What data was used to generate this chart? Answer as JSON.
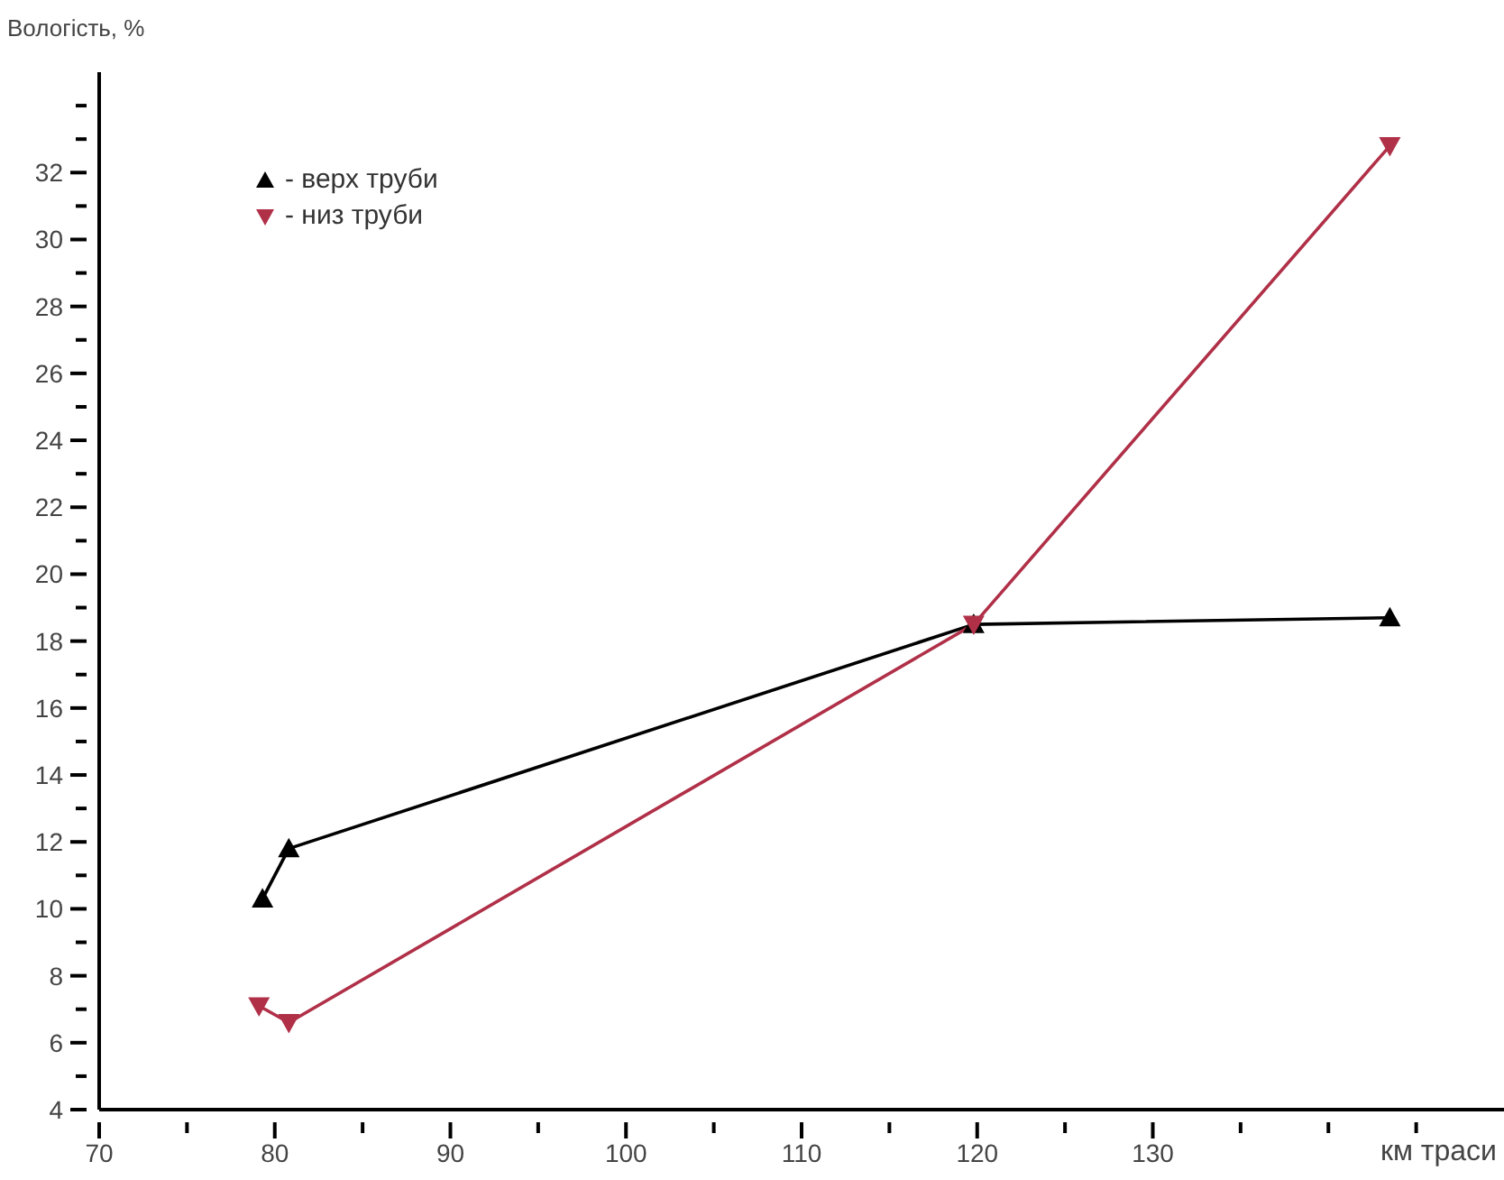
{
  "chart_data": {
    "type": "line",
    "xlabel": "км траси",
    "ylabel": "Вологість, %",
    "xlim": [
      70,
      150
    ],
    "ylim": [
      4,
      35
    ],
    "xticks": [
      70,
      {
        "value": 75,
        "label": null
      },
      80,
      {
        "value": 85,
        "label": null
      },
      90,
      {
        "value": 95,
        "label": null
      },
      100,
      {
        "value": 105,
        "label": null
      },
      110,
      {
        "value": 115,
        "label": null
      },
      120,
      {
        "value": 125,
        "label": null
      },
      130,
      {
        "value": 135,
        "label": null
      },
      {
        "value": 140,
        "label": null
      },
      {
        "value": 145,
        "label": null
      }
    ],
    "yticks": [
      4,
      {
        "value": 5,
        "label": null
      },
      6,
      {
        "value": 7,
        "label": null
      },
      8,
      {
        "value": 9,
        "label": null
      },
      10,
      {
        "value": 11,
        "label": null
      },
      12,
      {
        "value": 13,
        "label": null
      },
      14,
      {
        "value": 15,
        "label": null
      },
      16,
      {
        "value": 17,
        "label": null
      },
      18,
      {
        "value": 19,
        "label": null
      },
      20,
      {
        "value": 21,
        "label": null
      },
      22,
      {
        "value": 23,
        "label": null
      },
      24,
      {
        "value": 25,
        "label": null
      },
      26,
      {
        "value": 27,
        "label": null
      },
      28,
      {
        "value": 29,
        "label": null
      },
      30,
      {
        "value": 31,
        "label": null
      },
      32,
      {
        "value": 33,
        "label": null
      },
      {
        "value": 34,
        "label": null
      }
    ],
    "grid": false,
    "legend": "top left",
    "line_style": "solid",
    "series": [
      {
        "name": "- верх труби",
        "color": "#000000",
        "marker": "triangle",
        "x": [
          79.3,
          80.8,
          119.8,
          143.5
        ],
        "values": [
          10.3,
          11.8,
          18.5,
          18.7
        ]
      },
      {
        "name": "- низ труби",
        "color": "#b03048",
        "marker": "triangle-down",
        "x": [
          79.1,
          80.8,
          119.8,
          143.5
        ],
        "values": [
          7.1,
          6.6,
          18.5,
          32.8
        ]
      }
    ]
  }
}
